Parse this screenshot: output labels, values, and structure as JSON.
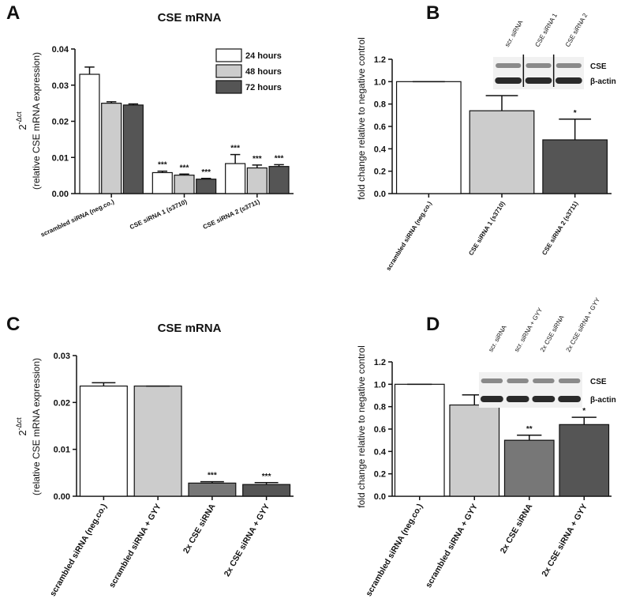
{
  "chart_data": [
    {
      "type": "bar",
      "letter": "A",
      "title": "CSE mRNA",
      "ylabel_base": "2",
      "ylabel_exponent": "-Δct",
      "ylabel": "(relative CSE mRNA expression)",
      "categories": [
        "scrambled siRNA (neg.co.)",
        "CSE siRNA 1 (s3710)",
        "CSE siRNA 2 (s3711)"
      ],
      "series": [
        {
          "name": "24 hours",
          "color": "#ffffff",
          "values": [
            0.033,
            0.0058,
            0.0083
          ],
          "errors": [
            0.002,
            0.0004,
            0.0025
          ],
          "significance": [
            null,
            "***",
            "***"
          ]
        },
        {
          "name": "48 hours",
          "color": "#cccccc",
          "values": [
            0.025,
            0.0051,
            0.0071
          ],
          "errors": [
            0.0004,
            0.0003,
            0.0008
          ],
          "significance": [
            null,
            "***",
            "***"
          ]
        },
        {
          "name": "72 hours",
          "color": "#555555",
          "values": [
            0.0245,
            0.004,
            0.0075
          ],
          "errors": [
            0.0003,
            0.0002,
            0.0005
          ],
          "significance": [
            null,
            "***",
            "***"
          ]
        }
      ],
      "legend": "upper right",
      "ylim": [
        0,
        0.04
      ],
      "yticks": [
        {
          "value": 0,
          "label": "0.00"
        },
        {
          "value": 0.01,
          "label": "0.01"
        },
        {
          "value": 0.02,
          "label": "0.02"
        },
        {
          "value": 0.03,
          "label": "0.03"
        },
        {
          "value": 0.04,
          "label": "0.04"
        }
      ]
    },
    {
      "type": "bar",
      "letter": "B",
      "ylabel": "fold change relative to negative control",
      "categories": [
        "scrambled siRNA (neg.co.)",
        "CSE siRNA 1 (s3710)",
        "CSE siRNA 2 (s3711)"
      ],
      "values": [
        1.0,
        0.74,
        0.48
      ],
      "errors": [
        0,
        0.135,
        0.185
      ],
      "significance": [
        null,
        null,
        "*"
      ],
      "colors": [
        "#ffffff",
        "#cccccc",
        "#555555"
      ],
      "ylim": [
        0,
        1.2
      ],
      "yticks": [
        {
          "value": 0,
          "label": "0.0"
        },
        0.2,
        0.4,
        0.6,
        0.8,
        {
          "value": 1,
          "label": "1.0"
        },
        1.2
      ],
      "inset": {
        "lanes": [
          "scr. siRNA",
          "CSE siRNA 1",
          "CSE siRNA 2"
        ],
        "bands": [
          "CSE",
          "β-actin"
        ]
      }
    },
    {
      "type": "bar",
      "letter": "C",
      "title": "CSE mRNA",
      "ylabel_base": "2",
      "ylabel_exponent": "-Δct",
      "ylabel": "(relative CSE mRNA expression)",
      "categories": [
        "scrambled siRNA (neg.co.)",
        "scrambled siRNA + GYY",
        "2x CSE siRNA",
        "2x CSE siRNA + GYY"
      ],
      "values": [
        0.0235,
        0.0235,
        0.0028,
        0.0025
      ],
      "errors": [
        0.0007,
        0,
        0.0003,
        0.0004
      ],
      "significance": [
        null,
        null,
        "***",
        "***"
      ],
      "colors": [
        "#ffffff",
        "#cccccc",
        "#777777",
        "#555555"
      ],
      "ylim": [
        0,
        0.03
      ],
      "yticks": [
        {
          "value": 0,
          "label": "0.00"
        },
        {
          "value": 0.01,
          "label": "0.01"
        },
        {
          "value": 0.02,
          "label": "0.02"
        },
        {
          "value": 0.03,
          "label": "0.03"
        }
      ]
    },
    {
      "type": "bar",
      "letter": "D",
      "ylabel": "fold change relative to negative control",
      "categories": [
        "scrambled siRNA (neg.co.)",
        "scrambled siRNA + GYY",
        "2x CSE siRNA",
        "2x CSE siRNA + GYY"
      ],
      "values": [
        1.0,
        0.815,
        0.5,
        0.64
      ],
      "errors": [
        0,
        0.09,
        0.045,
        0.065
      ],
      "significance": [
        null,
        null,
        "**",
        "*"
      ],
      "colors": [
        "#ffffff",
        "#cccccc",
        "#777777",
        "#555555"
      ],
      "ylim": [
        0,
        1.2
      ],
      "yticks": [
        {
          "value": 0,
          "label": "0.0"
        },
        0.2,
        0.4,
        0.6,
        0.8,
        {
          "value": 1,
          "label": "1.0"
        },
        1.2
      ],
      "inset": {
        "lanes": [
          "scr. siRNA",
          "scr. siRNA + GYY",
          "2x CSE siRNA",
          "2x CSE siRNA + GYY"
        ],
        "bands": [
          "CSE",
          "β-actin"
        ]
      }
    }
  ]
}
